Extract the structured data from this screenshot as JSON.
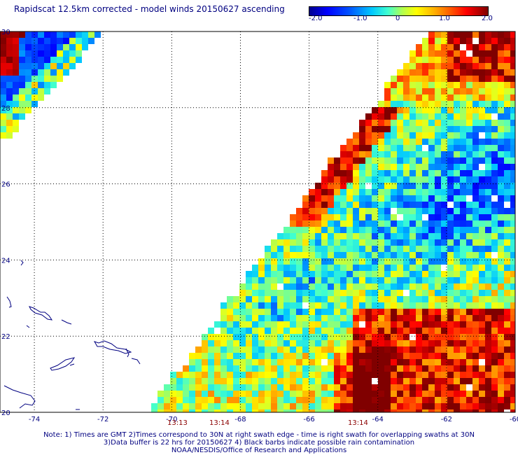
{
  "title": "Rapidscat 12.5km corrected - model winds 20150627 ascending",
  "colorbar": {
    "ticks": [
      "-2.0",
      "-1.0",
      "0",
      "1.0",
      "2.0"
    ],
    "range": [
      -2.0,
      2.0
    ]
  },
  "map": {
    "lon_range": [
      -75,
      -60
    ],
    "lat_range": [
      20,
      30
    ],
    "lon_labels": [
      "-74",
      "-72",
      "-70",
      "-68",
      "-66",
      "-64",
      "-62",
      "-60"
    ],
    "lat_labels": [
      "20",
      "22",
      "24",
      "26",
      "28",
      "30"
    ]
  },
  "swath_times": [
    "13:13",
    "13:14",
    "13:14"
  ],
  "notes": [
    "Note: 1) Times are GMT 2)Times correspond to 30N at right swath edge - time is right swath for overlapping swaths at 30N",
    "3)Data buffer is 22 hrs for 20150627 4) Black barbs indicate possible rain contamination",
    "NOAA/NESDIS/Office of Research and Applications"
  ]
}
